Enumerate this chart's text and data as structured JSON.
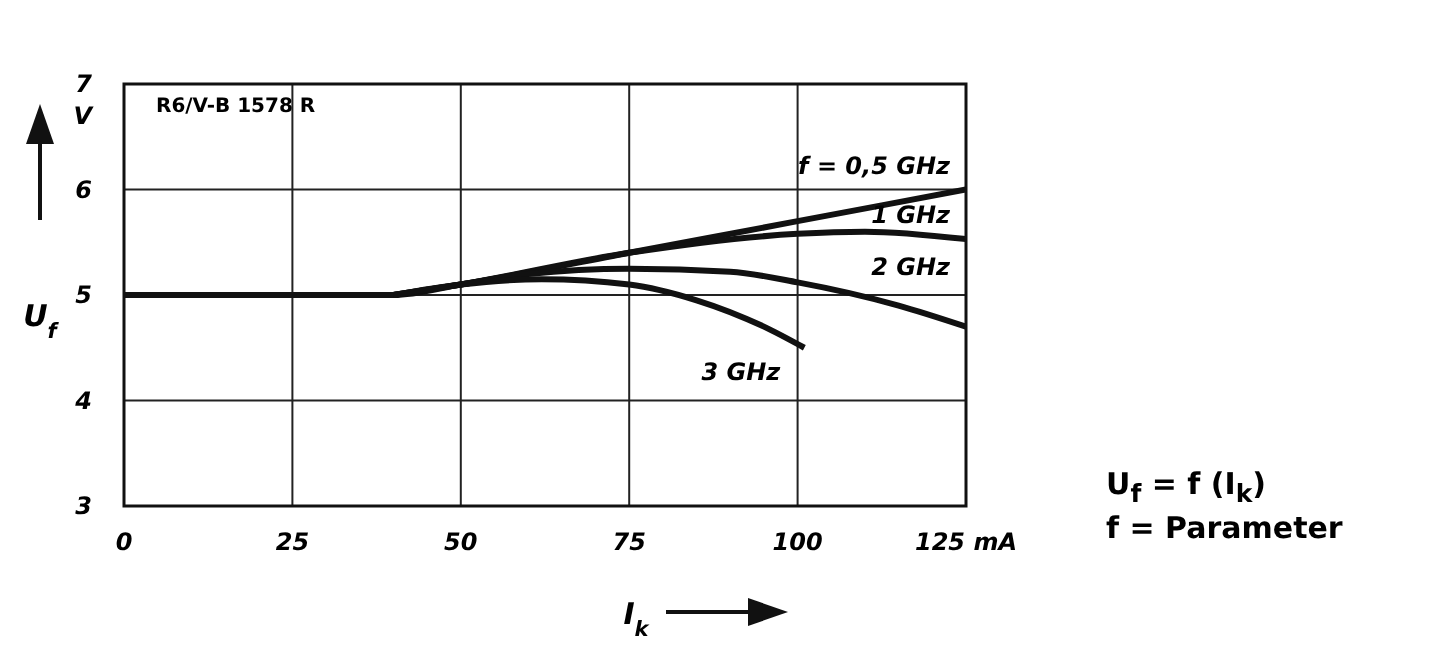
{
  "chart_data": {
    "type": "line",
    "xlabel": "I$_{k}$",
    "ylabel": "U$_{f}$",
    "annotations": [
      "R6/V-B 1578 R",
      "U$_{f}$ = f (I$_{k}$)",
      "f = Parameter"
    ],
    "xlim": [
      0,
      125
    ],
    "xticks": [
      0,
      25,
      50,
      75,
      100,
      {
        "value": 125,
        "label": "125 mA"
      }
    ],
    "ylim": [
      3,
      7
    ],
    "yticks": [
      3,
      4,
      5,
      6,
      {
        "value": 7,
        "label": "7\nV"
      }
    ],
    "grid": true,
    "marker": "none",
    "line_style": "solid",
    "series": [
      {
        "name": "f = 0,5 GHz",
        "color": "#111111",
        "x": [
          0,
          40,
          50,
          75,
          100,
          125
        ],
        "values": [
          5,
          5,
          5.1,
          5.4,
          5.7,
          6
        ]
      },
      {
        "name": "1 GHz",
        "color": "#111111",
        "x": [
          40,
          50,
          75,
          100,
          110,
          125
        ],
        "values": [
          5,
          5.1,
          5.4,
          5.58,
          5.6,
          5.53
        ]
      },
      {
        "name": "2 GHz",
        "color": "#111111",
        "x": [
          40,
          50,
          60,
          75,
          90,
          100,
          115,
          125
        ],
        "values": [
          5,
          5.1,
          5.2,
          5.25,
          5.22,
          5.12,
          4.9,
          4.7
        ]
      },
      {
        "name": "3 GHz",
        "color": "#111111",
        "x": [
          40,
          50,
          62,
          75,
          85,
          95,
          101
        ],
        "values": [
          5,
          5.1,
          5.15,
          5.1,
          4.95,
          4.7,
          4.5
        ]
      }
    ]
  }
}
